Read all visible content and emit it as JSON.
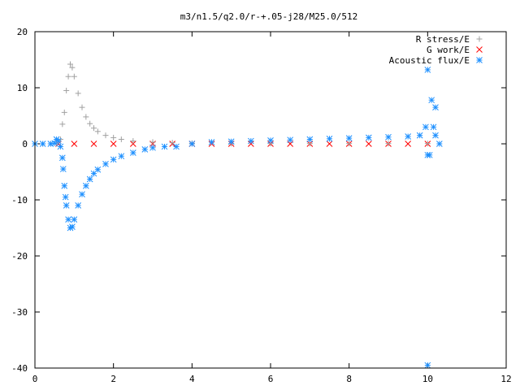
{
  "chart_data": {
    "type": "scatter",
    "title": "m3/n1.5/q2.0/r-+.05-j28/M25.0/512",
    "xlabel": "",
    "ylabel": "",
    "xlim": [
      0,
      12
    ],
    "ylim": [
      -40,
      20
    ],
    "xticks": [
      "0",
      "2",
      "4",
      "6",
      "8",
      "10",
      "12"
    ],
    "yticks": [
      "20",
      "10",
      "0",
      "-10",
      "-20",
      "-30",
      "-40"
    ],
    "grid": false,
    "legend_position": "top-right",
    "series": [
      {
        "name": "R stress/E",
        "marker": "plus",
        "color": "#a0a0a0",
        "x": [
          0,
          0.2,
          0.4,
          0.55,
          0.65,
          0.7,
          0.75,
          0.8,
          0.85,
          0.9,
          0.95,
          1.0,
          1.1,
          1.2,
          1.3,
          1.4,
          1.5,
          1.6,
          1.8,
          2.0,
          2.2,
          2.5,
          3.0,
          3.5,
          4.0,
          5.0,
          6.0,
          7.0,
          8.0,
          9.0,
          10.0
        ],
        "y": [
          0,
          0,
          0,
          0.1,
          0.8,
          3.5,
          5.6,
          9.5,
          12.0,
          14.2,
          13.6,
          12.0,
          9.0,
          6.5,
          4.8,
          3.6,
          2.8,
          2.2,
          1.5,
          1.1,
          0.8,
          0.5,
          0.3,
          0.2,
          0.1,
          0.05,
          0.05,
          0.05,
          0.05,
          0.05,
          0.05
        ]
      },
      {
        "name": "G work/E",
        "marker": "cross",
        "color": "#ff0000",
        "x": [
          0.6,
          1.0,
          1.5,
          2.0,
          2.5,
          3.0,
          3.5,
          4.0,
          4.5,
          5.0,
          5.5,
          6.0,
          6.5,
          7.0,
          7.5,
          8.0,
          8.5,
          9.0,
          9.5,
          10.0
        ],
        "y": [
          0,
          0,
          0,
          0,
          0,
          0,
          0,
          0,
          0,
          0,
          0,
          0,
          0,
          0,
          0,
          0,
          0,
          0,
          0,
          0
        ]
      },
      {
        "name": "Acoustic flux/E",
        "marker": "star",
        "color": "#1e90ff",
        "x": [
          0,
          0.2,
          0.4,
          0.5,
          0.55,
          0.6,
          0.65,
          0.7,
          0.72,
          0.75,
          0.78,
          0.8,
          0.85,
          0.9,
          0.95,
          1.0,
          1.1,
          1.2,
          1.3,
          1.4,
          1.5,
          1.6,
          1.8,
          2.0,
          2.2,
          2.5,
          2.8,
          3.0,
          3.3,
          3.6,
          4.0,
          4.5,
          5.0,
          5.5,
          6.0,
          6.5,
          7.0,
          7.5,
          8.0,
          8.5,
          9.0,
          9.5,
          9.8,
          9.95,
          10.0,
          10.0,
          10.0,
          10.05,
          10.1,
          10.15,
          10.2,
          10.2,
          10.3
        ],
        "y": [
          0,
          0,
          0,
          0.1,
          0.8,
          0.5,
          -0.5,
          -2.5,
          -4.5,
          -7.5,
          -9.5,
          -11.0,
          -13.5,
          -15.0,
          -14.8,
          -13.5,
          -11.0,
          -9.0,
          -7.5,
          -6.3,
          -5.3,
          -4.6,
          -3.6,
          -2.8,
          -2.2,
          -1.6,
          -1.0,
          -0.7,
          -0.5,
          -0.5,
          0,
          0.3,
          0.4,
          0.5,
          0.6,
          0.7,
          0.8,
          0.9,
          1.0,
          1.1,
          1.2,
          1.3,
          1.5,
          3.0,
          13.2,
          -2.0,
          -39.5,
          -2.0,
          7.8,
          3.0,
          6.5,
          1.5,
          0.0
        ]
      }
    ]
  }
}
